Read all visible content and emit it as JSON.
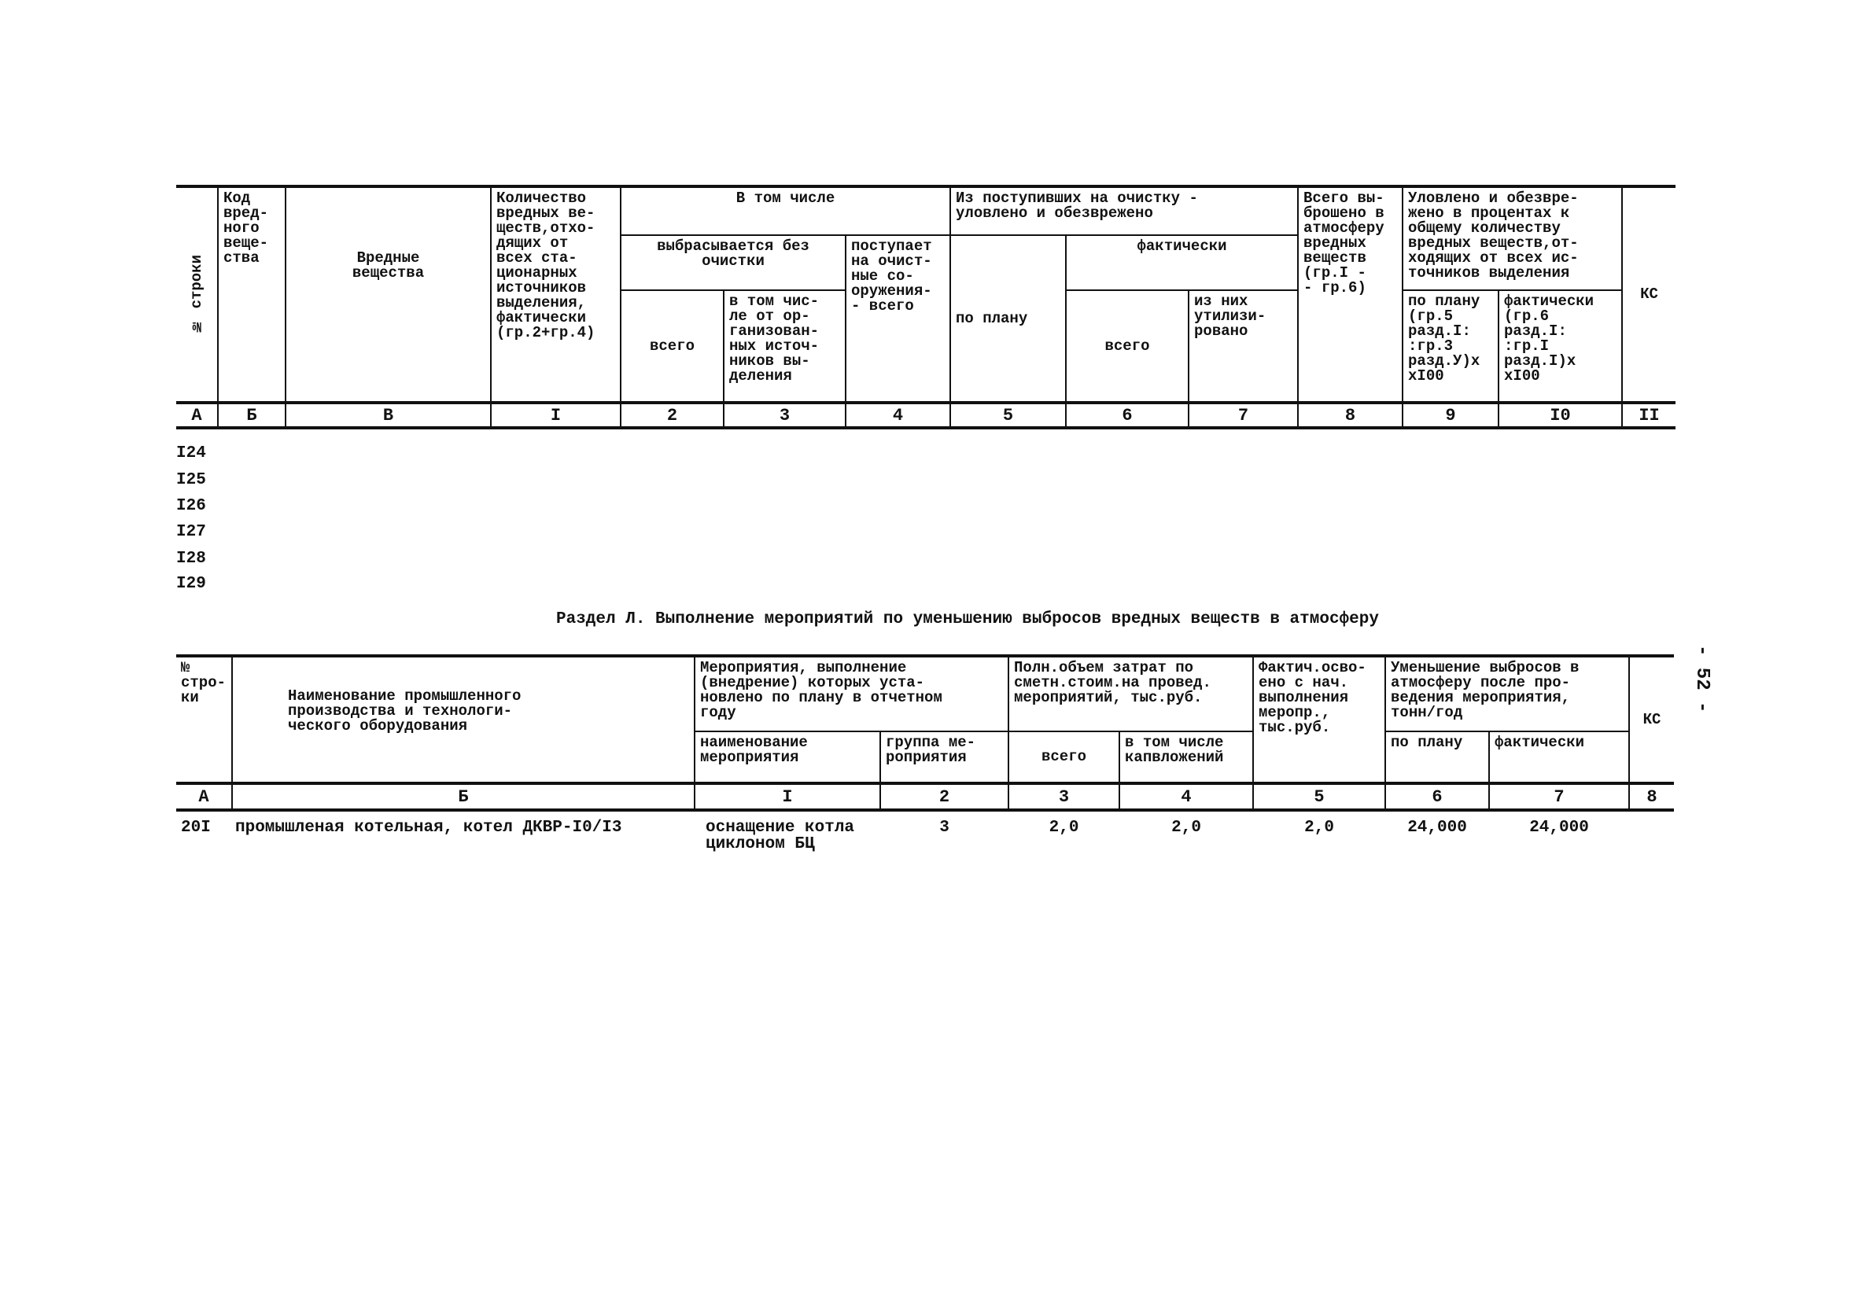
{
  "page_number": "- 52 -",
  "table1": {
    "headers": {
      "row_no": "№ строки",
      "code": "Код\nвред-\nного\nвеще-\nства",
      "substances": "Вредные\nвещества",
      "quantity": "Количество\nвредных ве-\nществ,отхо-\nдящих от\nвсех ста-\nционарных\nисточников\nвыделения,\nфактически\n(гр.2+гр.4)",
      "including": "В том числе",
      "emitted_no_cleaning": "выбрасывается без\nочистки",
      "emitted_total": "всего",
      "emitted_organized": "в том чис-\nле от ор-\nганизован-\nных источ-\nников вы-\nделения",
      "to_cleaning": "поступает\nна очист-\nные со-\nоружения-\n- всего",
      "captured": "Из поступивших на очистку -\nуловлено и обезврежено",
      "captured_plan": "по плану",
      "captured_actual": "фактически",
      "captured_actual_total": "всего",
      "captured_utilized": "из них\nутилизи-\nровано",
      "total_emitted": "Всего вы-\nброшено в\nатмосферу\nвредных\nвеществ\n(гр.I -\n- гр.6)",
      "percent": "Уловлено и обезвре-\nжено в процентах к\nобщему количеству\nвредных веществ,от-\nходящих от всех ис-\nточников выделения",
      "percent_plan": "по плану\n(гр.5\nразд.I:\n:гр.3\nразд.У)х\nхI00",
      "percent_actual": "фактически\n(гр.6\nразд.I:\n:гр.I\nразд.I)х\nхI00",
      "ks": "КС"
    },
    "column_numbers": [
      "А",
      "Б",
      "В",
      "I",
      "2",
      "3",
      "4",
      "5",
      "6",
      "7",
      "8",
      "9",
      "I0",
      "II"
    ],
    "row_numbers": [
      "I24",
      "I25",
      "I26",
      "I27",
      "I28",
      "I29"
    ]
  },
  "section_title": "Раздел Л. Выполнение мероприятий по уменьшению выбросов вредных веществ в атмосферу",
  "table2": {
    "headers": {
      "row_no": "№\nстро-\nки",
      "production": "Наименование промышленного\nпроизводства и технологи-\nческого оборудования",
      "measures": "Мероприятия, выполнение\n(внедрение) которых уста-\nновлено по плану в отчетном\nгоду",
      "measure_name": "наименование\nмероприятия",
      "measure_group": "группа ме-\nроприятия",
      "cost": "Полн.объем затрат по\nсметн.стоим.на провед.\nмероприятий, тыс.руб.",
      "cost_total": "всего",
      "cost_capital": "в том числе\nкапвложений",
      "mastered": "Фактич.осво-\nено с нач.\nвыполнения\nмеропр.,\nтыс.руб.",
      "reduction": "Уменьшение выбросов в\nатмосферу после про-\nведения мероприятия,\nтонн/год",
      "reduction_plan": "по плану",
      "reduction_actual": "фактически",
      "ks": "КС"
    },
    "column_numbers": [
      "А",
      "Б",
      "I",
      "2",
      "3",
      "4",
      "5",
      "6",
      "7",
      "8"
    ],
    "rows": [
      {
        "row_no": "20I",
        "production": "промышленая котельная, котел ДКВР-I0/I3",
        "measure_name": "оснащение котла\nциклоном БЦ",
        "measure_group": "3",
        "cost_total": "2,0",
        "cost_capital": "2,0",
        "mastered": "2,0",
        "reduction_plan": "24,000",
        "reduction_actual": "24,000",
        "ks": ""
      }
    ]
  }
}
